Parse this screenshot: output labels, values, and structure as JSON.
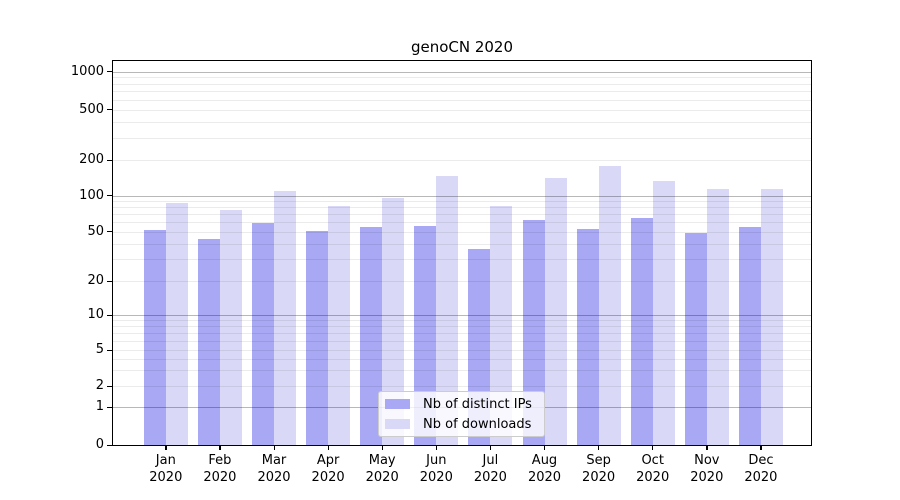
{
  "title": "genoCN 2020",
  "colors": {
    "background": "#ffffff",
    "series_ips": "#a8a8f5",
    "series_downloads": "#d9d9f7",
    "grid_minor": "#ebebeb",
    "grid_major": "#b8b8b8",
    "spine": "#000000",
    "legend_border": "#cccccc"
  },
  "legend": {
    "items": [
      {
        "label": "Nb of distinct IPs",
        "color": "#a8a8f5"
      },
      {
        "label": "Nb of downloads",
        "color": "#d9d9f7"
      }
    ]
  },
  "chart_data": {
    "type": "bar",
    "title": "genoCN 2020",
    "months": [
      "Jan",
      "Feb",
      "Mar",
      "Apr",
      "May",
      "Jun",
      "Jul",
      "Aug",
      "Sep",
      "Oct",
      "Nov",
      "Dec"
    ],
    "year": "2020",
    "series": [
      {
        "name": "Nb of distinct IPs",
        "color": "#a8a8f5",
        "values": [
          52,
          44,
          59,
          51,
          55,
          56,
          36,
          62,
          53,
          65,
          49,
          55
        ]
      },
      {
        "name": "Nb of downloads",
        "color": "#d9d9f7",
        "values": [
          87,
          76,
          110,
          82,
          95,
          148,
          82,
          140,
          179,
          134,
          115,
          115
        ]
      }
    ],
    "xlabel": "",
    "ylabel": "",
    "yscale": "log-like (1-2-5 steps, 0 at baseline)",
    "ylim": [
      0,
      1200
    ],
    "y_ticks": [
      0,
      1,
      2,
      5,
      10,
      20,
      50,
      100,
      200,
      500,
      1000
    ],
    "y_major_gridlines": [
      1,
      10,
      100,
      1000
    ],
    "y_minor_gridlines": [
      2,
      3,
      4,
      5,
      6,
      7,
      8,
      9,
      20,
      30,
      40,
      50,
      60,
      70,
      80,
      90,
      200,
      300,
      400,
      500,
      600,
      700,
      800,
      900
    ],
    "grid": "on",
    "legend_position": "lower center"
  }
}
